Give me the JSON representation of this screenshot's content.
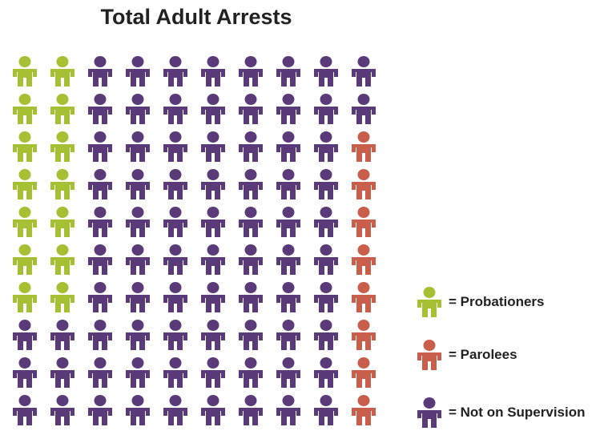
{
  "chart_data": {
    "type": "pictogram",
    "title": "Total Adult Arrests",
    "grid": {
      "rows": 10,
      "columns": 10
    },
    "categories": [
      {
        "key": "probationers",
        "label": "= Probationers",
        "count": 14,
        "color": "#a5c133"
      },
      {
        "key": "parolees",
        "label": "= Parolees",
        "count": 8,
        "color": "#c95f4a"
      },
      {
        "key": "not_supervised",
        "label": "= Not on Supervision",
        "count": 78,
        "color": "#5b3a7a"
      }
    ],
    "cells": [
      [
        "probationers",
        "probationers",
        "not_supervised",
        "not_supervised",
        "not_supervised",
        "not_supervised",
        "not_supervised",
        "not_supervised",
        "not_supervised",
        "not_supervised"
      ],
      [
        "probationers",
        "probationers",
        "not_supervised",
        "not_supervised",
        "not_supervised",
        "not_supervised",
        "not_supervised",
        "not_supervised",
        "not_supervised",
        "not_supervised"
      ],
      [
        "probationers",
        "probationers",
        "not_supervised",
        "not_supervised",
        "not_supervised",
        "not_supervised",
        "not_supervised",
        "not_supervised",
        "not_supervised",
        "parolees"
      ],
      [
        "probationers",
        "probationers",
        "not_supervised",
        "not_supervised",
        "not_supervised",
        "not_supervised",
        "not_supervised",
        "not_supervised",
        "not_supervised",
        "parolees"
      ],
      [
        "probationers",
        "probationers",
        "not_supervised",
        "not_supervised",
        "not_supervised",
        "not_supervised",
        "not_supervised",
        "not_supervised",
        "not_supervised",
        "parolees"
      ],
      [
        "probationers",
        "probationers",
        "not_supervised",
        "not_supervised",
        "not_supervised",
        "not_supervised",
        "not_supervised",
        "not_supervised",
        "not_supervised",
        "parolees"
      ],
      [
        "probationers",
        "probationers",
        "not_supervised",
        "not_supervised",
        "not_supervised",
        "not_supervised",
        "not_supervised",
        "not_supervised",
        "not_supervised",
        "parolees"
      ],
      [
        "not_supervised",
        "not_supervised",
        "not_supervised",
        "not_supervised",
        "not_supervised",
        "not_supervised",
        "not_supervised",
        "not_supervised",
        "not_supervised",
        "parolees"
      ],
      [
        "not_supervised",
        "not_supervised",
        "not_supervised",
        "not_supervised",
        "not_supervised",
        "not_supervised",
        "not_supervised",
        "not_supervised",
        "not_supervised",
        "parolees"
      ],
      [
        "not_supervised",
        "not_supervised",
        "not_supervised",
        "not_supervised",
        "not_supervised",
        "not_supervised",
        "not_supervised",
        "not_supervised",
        "not_supervised",
        "parolees"
      ]
    ],
    "legend": {
      "position": "right"
    }
  }
}
